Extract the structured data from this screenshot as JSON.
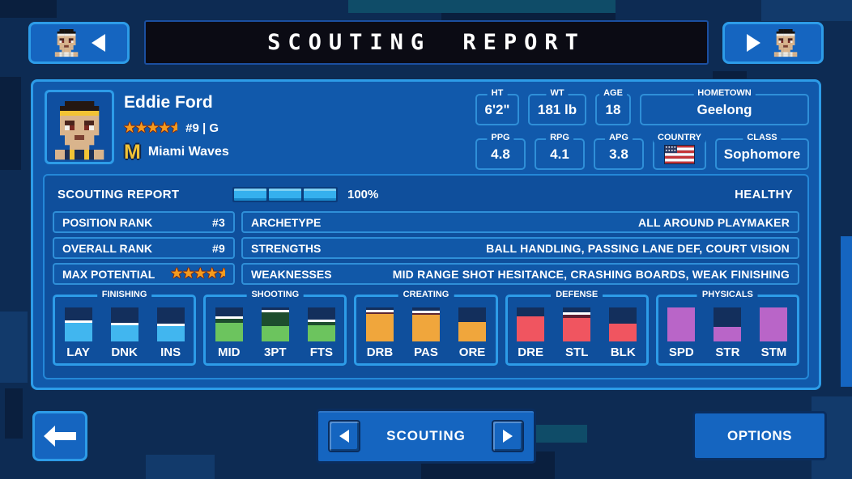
{
  "header": {
    "title": "SCOUTING REPORT"
  },
  "player": {
    "name": "Eddie Ford",
    "stars": 4.5,
    "jersey_info": "#9 | G",
    "team_logo_letter": "M",
    "team_name": "Miami Waves",
    "stats_row1": [
      {
        "label": "HT",
        "value": "6'2\""
      },
      {
        "label": "WT",
        "value": "181 lb"
      },
      {
        "label": "AGE",
        "value": "18"
      },
      {
        "label": "HOMETOWN",
        "value": "Geelong"
      }
    ],
    "stats_row2": [
      {
        "label": "PPG",
        "value": "4.8"
      },
      {
        "label": "RPG",
        "value": "4.1"
      },
      {
        "label": "APG",
        "value": "3.8"
      },
      {
        "label": "COUNTRY",
        "flag": "usa-flag"
      },
      {
        "label": "CLASS",
        "value": "Sophomore"
      }
    ]
  },
  "scouting": {
    "section_label": "SCOUTING REPORT",
    "progress": {
      "segments_filled": 3,
      "segments_total": 3,
      "percent_label": "100%"
    },
    "health_status": "HEALTHY",
    "ranks": [
      {
        "label": "POSITION RANK",
        "value": "#3"
      },
      {
        "label": "OVERALL RANK",
        "value": "#9"
      },
      {
        "label": "MAX POTENTIAL",
        "stars": 4.5
      }
    ],
    "details": [
      {
        "label": "ARCHETYPE",
        "value": "ALL AROUND PLAYMAKER"
      },
      {
        "label": "STRENGTHS",
        "value": "BALL HANDLING, PASSING LANE DEF, COURT VISION"
      },
      {
        "label": "WEAKNESSES",
        "value": "MID RANGE SHOT HESITANCE, CRASHING BOARDS, WEAK FINISHING"
      }
    ],
    "attribute_groups": [
      {
        "name": "FINISHING",
        "color": "#41b6ef",
        "potential_color": "#155f93",
        "bars": [
          {
            "label": "LAY",
            "value_pct": 55,
            "potential_pct": 58
          },
          {
            "label": "DNK",
            "value_pct": 47,
            "potential_pct": 50
          },
          {
            "label": "INS",
            "value_pct": 45,
            "potential_pct": 48
          }
        ]
      },
      {
        "name": "SHOOTING",
        "color": "#6cc45e",
        "potential_color": "#1d4d2e",
        "bars": [
          {
            "label": "MID",
            "value_pct": 55,
            "potential_pct": 68
          },
          {
            "label": "3PT",
            "value_pct": 45,
            "potential_pct": 88
          },
          {
            "label": "FTS",
            "value_pct": 47,
            "potential_pct": 60
          }
        ]
      },
      {
        "name": "CREATING",
        "color": "#f0a63c",
        "potential_color": "#5d2531",
        "bars": [
          {
            "label": "DRB",
            "value_pct": 80,
            "potential_pct": 88
          },
          {
            "label": "PAS",
            "value_pct": 78,
            "potential_pct": 85
          },
          {
            "label": "ORE",
            "value_pct": 58,
            "potential_pct": null
          }
        ]
      },
      {
        "name": "DEFENSE",
        "color": "#f05560",
        "potential_color": "#5d1f33",
        "bars": [
          {
            "label": "DRE",
            "value_pct": 73,
            "potential_pct": null
          },
          {
            "label": "STL",
            "value_pct": 68,
            "potential_pct": 82
          },
          {
            "label": "BLK",
            "value_pct": 52,
            "potential_pct": null
          }
        ]
      },
      {
        "name": "PHYSICALS",
        "color": "#b965c8",
        "potential_color": null,
        "bars": [
          {
            "label": "SPD",
            "value_pct": 100,
            "potential_pct": null
          },
          {
            "label": "STR",
            "value_pct": 42,
            "potential_pct": null
          },
          {
            "label": "STM",
            "value_pct": 100,
            "potential_pct": null
          }
        ]
      }
    ]
  },
  "footer": {
    "nav_label": "SCOUTING",
    "options_label": "OPTIONS"
  },
  "colors": {
    "accent_border": "#2d9ce8",
    "panel": "#1159ab",
    "button": "#1565c0",
    "progress_fill": "#35b0ee",
    "star": "#f59b1e"
  }
}
